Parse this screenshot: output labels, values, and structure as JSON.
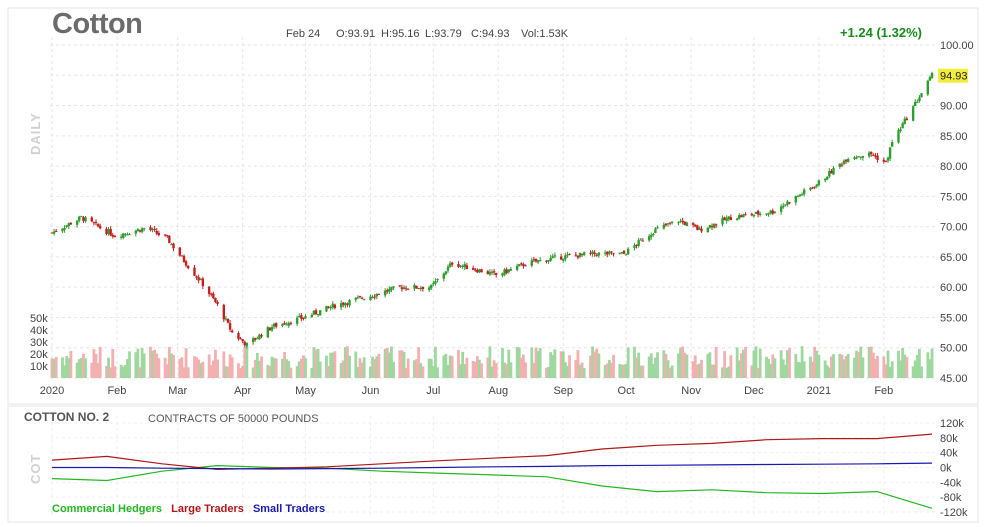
{
  "header": {
    "title": "Cotton",
    "date": "Feb 24",
    "open": "O:93.91",
    "high": "H:95.16",
    "low": "L:93.79",
    "close": "C:94.93",
    "volume": "Vol:1.53K",
    "change": "+1.24 (1.32%)",
    "last_price_badge": "94.93",
    "panel_label": "DAILY"
  },
  "cot": {
    "title": "COTTON NO. 2",
    "subtitle": "CONTRACTS OF 50000 POUNDS",
    "panel_label": "COT",
    "legend": {
      "commercial": "Commercial Hedgers",
      "large": "Large Traders",
      "small": "Small Traders"
    }
  },
  "colors": {
    "up": "#2e9e2e",
    "down": "#c42020",
    "vol_up": "#9fd89f",
    "vol_down": "#f4b0b0",
    "badge": "#f2ec3c",
    "commercial": "#22b822",
    "large": "#b01818",
    "small": "#1a1ab0"
  },
  "chart_data": [
    {
      "type": "candlestick",
      "title": "Cotton",
      "x_tick_labels": [
        "2020",
        "Feb",
        "Mar",
        "Apr",
        "May",
        "Jun",
        "Jul",
        "Aug",
        "Sep",
        "Oct",
        "Nov",
        "Dec",
        "2021",
        "Feb"
      ],
      "y_tick_labels": [
        "100.00",
        "95.00",
        "90.00",
        "85.00",
        "80.00",
        "75.00",
        "70.00",
        "65.00",
        "60.00",
        "55.00",
        "50.00",
        "45.00"
      ],
      "ylim": [
        45,
        100
      ],
      "grid": true,
      "price_path": [
        {
          "x": "2020-01-01",
          "y": 69.0
        },
        {
          "x": "2020-01-15",
          "y": 71.5
        },
        {
          "x": "2020-01-31",
          "y": 68.5
        },
        {
          "x": "2020-02-15",
          "y": 69.8
        },
        {
          "x": "2020-02-25",
          "y": 68.0
        },
        {
          "x": "2020-03-06",
          "y": 63.5
        },
        {
          "x": "2020-03-13",
          "y": 60.5
        },
        {
          "x": "2020-03-20",
          "y": 57.0
        },
        {
          "x": "2020-03-27",
          "y": 52.5
        },
        {
          "x": "2020-04-03",
          "y": 50.5
        },
        {
          "x": "2020-04-15",
          "y": 53.5
        },
        {
          "x": "2020-04-30",
          "y": 55.0
        },
        {
          "x": "2020-05-15",
          "y": 57.0
        },
        {
          "x": "2020-05-31",
          "y": 58.5
        },
        {
          "x": "2020-06-15",
          "y": 60.0
        },
        {
          "x": "2020-06-30",
          "y": 60.0
        },
        {
          "x": "2020-07-10",
          "y": 64.0
        },
        {
          "x": "2020-07-31",
          "y": 62.0
        },
        {
          "x": "2020-08-15",
          "y": 64.0
        },
        {
          "x": "2020-08-31",
          "y": 65.0
        },
        {
          "x": "2020-09-15",
          "y": 65.5
        },
        {
          "x": "2020-09-30",
          "y": 65.5
        },
        {
          "x": "2020-10-15",
          "y": 69.5
        },
        {
          "x": "2020-10-26",
          "y": 71.0
        },
        {
          "x": "2020-11-05",
          "y": 69.5
        },
        {
          "x": "2020-11-20",
          "y": 71.5
        },
        {
          "x": "2020-12-10",
          "y": 72.5
        },
        {
          "x": "2020-12-31",
          "y": 77.0
        },
        {
          "x": "2021-01-15",
          "y": 81.5
        },
        {
          "x": "2021-01-26",
          "y": 82.0
        },
        {
          "x": "2021-02-02",
          "y": 80.5
        },
        {
          "x": "2021-02-05",
          "y": 84.0
        },
        {
          "x": "2021-02-12",
          "y": 88.0
        },
        {
          "x": "2021-02-24",
          "y": 94.93
        }
      ],
      "volume_axis_labels": [
        "50k",
        "40k",
        "30k",
        "20k",
        "10k"
      ]
    },
    {
      "type": "line",
      "title": "COTTON NO. 2",
      "y_tick_labels": [
        "120k",
        "80k",
        "40k",
        "0k",
        "-40k",
        "-80k",
        "-120k"
      ],
      "ylim": [
        -120000,
        120000
      ],
      "series": [
        {
          "name": "Commercial Hedgers",
          "values": [
            -30000,
            -35000,
            -10000,
            5000,
            0,
            -2000,
            -10000,
            -15000,
            -20000,
            -25000,
            -50000,
            -65000,
            -60000,
            -68000,
            -70000,
            -65000,
            -110000
          ]
        },
        {
          "name": "Large Traders",
          "values": [
            20000,
            30000,
            10000,
            -5000,
            -2000,
            2000,
            10000,
            18000,
            25000,
            32000,
            50000,
            60000,
            65000,
            75000,
            78000,
            78000,
            90000
          ]
        },
        {
          "name": "Small Traders",
          "values": [
            0,
            0,
            -2000,
            -3000,
            -4000,
            -3000,
            -2000,
            0,
            2000,
            3000,
            5000,
            6000,
            7000,
            8000,
            9000,
            10000,
            12000
          ]
        }
      ]
    }
  ]
}
